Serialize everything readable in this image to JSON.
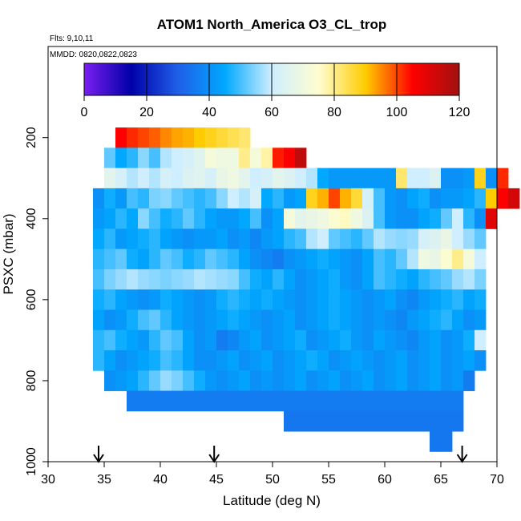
{
  "chart_data": {
    "type": "heatmap",
    "title": "ATOM1 North_America O3_CL_trop",
    "flights": "Flts: 9,10,11",
    "dates": "MMDD: 0820,0822,0823",
    "xlabel": "Latitude (deg N)",
    "ylabel": "PSXC (mbar)",
    "xlim": [
      30,
      70
    ],
    "ylim": [
      1000,
      0
    ],
    "x_ticks": [
      30,
      35,
      40,
      45,
      50,
      55,
      60,
      65,
      70
    ],
    "y_ticks": [
      200,
      400,
      600,
      800,
      1000
    ],
    "colorbar": {
      "range": [
        0,
        120
      ],
      "ticks": [
        0,
        20,
        40,
        60,
        80,
        100,
        120
      ],
      "stops": [
        "#7a1ff0",
        "#0000a8",
        "#1f5fe8",
        "#00a8ff",
        "#cfeeff",
        "#fffdd0",
        "#ffcc00",
        "#ff0000",
        "#a01010"
      ]
    },
    "arrows_latitude": [
      34.5,
      44.8,
      66.9
    ],
    "cell_width_deg": 1,
    "cell_height_mbar": 50,
    "rows": [
      {
        "p": 200,
        "x0": 36,
        "values": [
          105,
          102,
          100,
          98,
          95,
          93,
          92,
          90,
          88,
          86,
          84,
          82
        ]
      },
      {
        "p": 250,
        "x0": 35,
        "values": [
          52,
          45,
          48,
          55,
          50,
          58,
          60,
          62,
          65,
          72,
          70,
          70,
          80,
          72,
          78,
          103,
          106,
          115
        ]
      },
      {
        "p": 300,
        "x0": 35,
        "values": [
          66,
          62,
          58,
          60,
          58,
          62,
          60,
          64,
          65,
          62,
          68,
          70,
          66,
          60,
          62,
          66,
          64,
          60,
          58,
          45,
          42,
          42,
          42,
          42,
          42,
          42,
          82,
          60,
          60,
          64,
          40,
          40,
          42,
          88,
          40,
          102
        ]
      },
      {
        "p": 350,
        "x0": 34,
        "values": [
          40,
          46,
          42,
          50,
          48,
          54,
          55,
          52,
          50,
          48,
          50,
          55,
          60,
          58,
          62,
          45,
          48,
          42,
          44,
          88,
          92,
          100,
          92,
          86,
          62,
          50,
          42,
          40,
          44,
          46,
          40,
          42,
          42,
          44,
          48,
          90,
          105,
          112
        ]
      },
      {
        "p": 400,
        "x0": 34,
        "values": [
          42,
          44,
          48,
          45,
          55,
          50,
          46,
          48,
          52,
          48,
          44,
          42,
          42,
          45,
          50,
          40,
          44,
          72,
          66,
          68,
          70,
          74,
          76,
          70,
          64,
          50,
          42,
          40,
          40,
          44,
          46,
          52,
          60,
          48,
          40,
          110
        ]
      },
      {
        "p": 450,
        "x0": 34,
        "values": [
          45,
          48,
          42,
          44,
          46,
          48,
          44,
          42,
          40,
          42,
          42,
          44,
          40,
          42,
          38,
          42,
          44,
          48,
          50,
          58,
          60,
          52,
          50,
          48,
          52,
          58,
          56,
          55,
          56,
          62,
          64,
          68,
          60,
          56,
          52
        ]
      },
      {
        "p": 500,
        "x0": 34,
        "values": [
          48,
          50,
          52,
          46,
          44,
          48,
          52,
          50,
          46,
          48,
          52,
          50,
          48,
          44,
          40,
          38,
          36,
          40,
          42,
          44,
          46,
          44,
          42,
          40,
          44,
          50,
          48,
          52,
          58,
          70,
          68,
          74,
          80,
          72,
          60
        ]
      },
      {
        "p": 550,
        "x0": 34,
        "values": [
          50,
          54,
          56,
          58,
          56,
          55,
          54,
          55,
          56,
          58,
          57,
          56,
          55,
          50,
          46,
          44,
          48,
          44,
          40,
          42,
          44,
          46,
          42,
          40,
          44,
          50,
          48,
          46,
          44,
          48,
          50,
          52,
          56,
          58,
          54
        ]
      },
      {
        "p": 600,
        "x0": 34,
        "values": [
          46,
          48,
          44,
          42,
          40,
          42,
          46,
          44,
          42,
          40,
          42,
          46,
          48,
          46,
          44,
          46,
          44,
          42,
          40,
          42,
          44,
          46,
          44,
          42,
          40,
          42,
          44,
          40,
          38,
          42,
          44,
          46,
          48,
          44,
          46
        ]
      },
      {
        "p": 650,
        "x0": 34,
        "values": [
          44,
          40,
          42,
          46,
          50,
          52,
          48,
          44,
          42,
          40,
          42,
          44,
          46,
          44,
          42,
          40,
          42,
          44,
          40,
          42,
          44,
          46,
          44,
          42,
          40,
          42,
          40,
          38,
          42,
          44,
          46,
          48,
          44,
          40,
          42
        ]
      },
      {
        "p": 700,
        "x0": 34,
        "values": [
          48,
          50,
          46,
          44,
          42,
          48,
          52,
          50,
          44,
          40,
          42,
          36,
          38,
          42,
          44,
          40,
          42,
          44,
          46,
          40,
          42,
          44,
          46,
          42,
          40,
          44,
          42,
          40,
          38,
          42,
          44,
          40,
          42,
          46,
          60
        ]
      },
      {
        "p": 750,
        "x0": 34,
        "values": [
          48,
          44,
          40,
          42,
          44,
          46,
          50,
          48,
          44,
          40,
          40,
          42,
          44,
          40,
          42,
          44,
          40,
          42,
          44,
          46,
          44,
          40,
          42,
          44,
          42,
          40,
          42,
          44,
          40,
          42,
          44,
          40,
          42,
          44,
          40
        ]
      },
      {
        "p": 800,
        "x0": 35,
        "values": [
          40,
          42,
          44,
          48,
          52,
          56,
          54,
          50,
          46,
          42,
          40,
          42,
          44,
          40,
          42,
          40,
          42,
          44,
          40,
          42,
          44,
          40,
          42,
          44,
          40,
          42,
          44,
          40,
          42,
          44,
          40,
          42,
          36
        ]
      },
      {
        "p": 850,
        "x0": 37,
        "values": [
          36,
          36,
          36,
          36,
          36,
          36,
          36,
          36,
          36,
          36,
          36,
          36,
          36,
          36,
          36,
          36,
          36,
          36,
          36,
          36,
          36,
          36,
          36,
          36,
          36,
          36,
          36,
          36,
          36,
          36
        ]
      },
      {
        "p": 900,
        "x0": 51,
        "values": [
          35,
          35,
          35,
          35,
          35,
          35,
          35,
          35,
          35,
          35,
          35,
          35,
          35,
          35,
          35,
          35
        ]
      },
      {
        "p": 950,
        "x0": 64,
        "values": [
          35,
          35
        ]
      }
    ]
  }
}
